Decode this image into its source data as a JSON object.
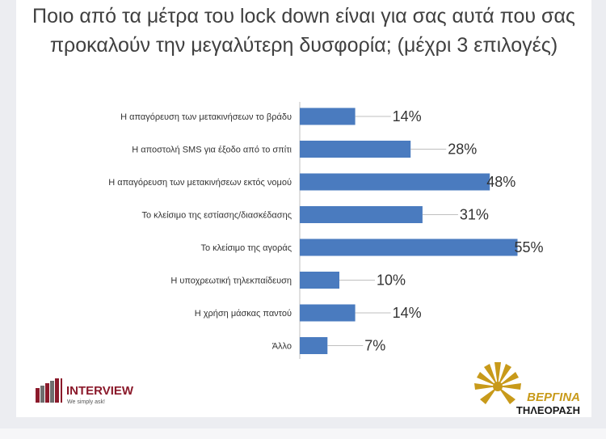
{
  "chart_data": {
    "type": "bar",
    "orientation": "horizontal",
    "title": "Ποιο από τα μέτρα του lock down είναι για σας αυτά που σας προκαλούν την μεγαλύτερη δυσφορία; (μέχρι 3 επιλογές)",
    "categories": [
      "Η απαγόρευση των μετακινήσεων το βράδυ",
      "Η αποστολή SMS για έξοδο από το σπίτι",
      "Η απαγόρευση των μετακινήσεων εκτός νομού",
      "Το κλείσιμο της εστίασης/διασκέδασης",
      "Το κλείσιμο της αγοράς",
      "Η υποχρεωτική τηλεκπαίδευση",
      "Η χρήση μάσκας παντού",
      "Άλλο"
    ],
    "values": [
      14,
      28,
      48,
      31,
      55,
      10,
      14,
      7
    ],
    "value_labels": [
      "14%",
      "28%",
      "48%",
      "31%",
      "55%",
      "10%",
      "14%",
      "7%"
    ],
    "unit": "%",
    "xlim": [
      0,
      60
    ],
    "bar_color": "#4a7bbf",
    "grid": false,
    "legend": "none"
  },
  "logos": {
    "interview": {
      "name": "INTERVIEW",
      "tagline": "We simply ask!"
    },
    "vergina": {
      "name": "ΒΕΡΓΙΝΑ",
      "subtitle": "ΤΗΛΕΟΡΑΣΗ"
    }
  },
  "colors": {
    "bar": "#4a7bbf",
    "interview_red": "#8b1a2b",
    "vergina_gold": "#c89a1a",
    "vergina_dark": "#1a1a1a"
  }
}
